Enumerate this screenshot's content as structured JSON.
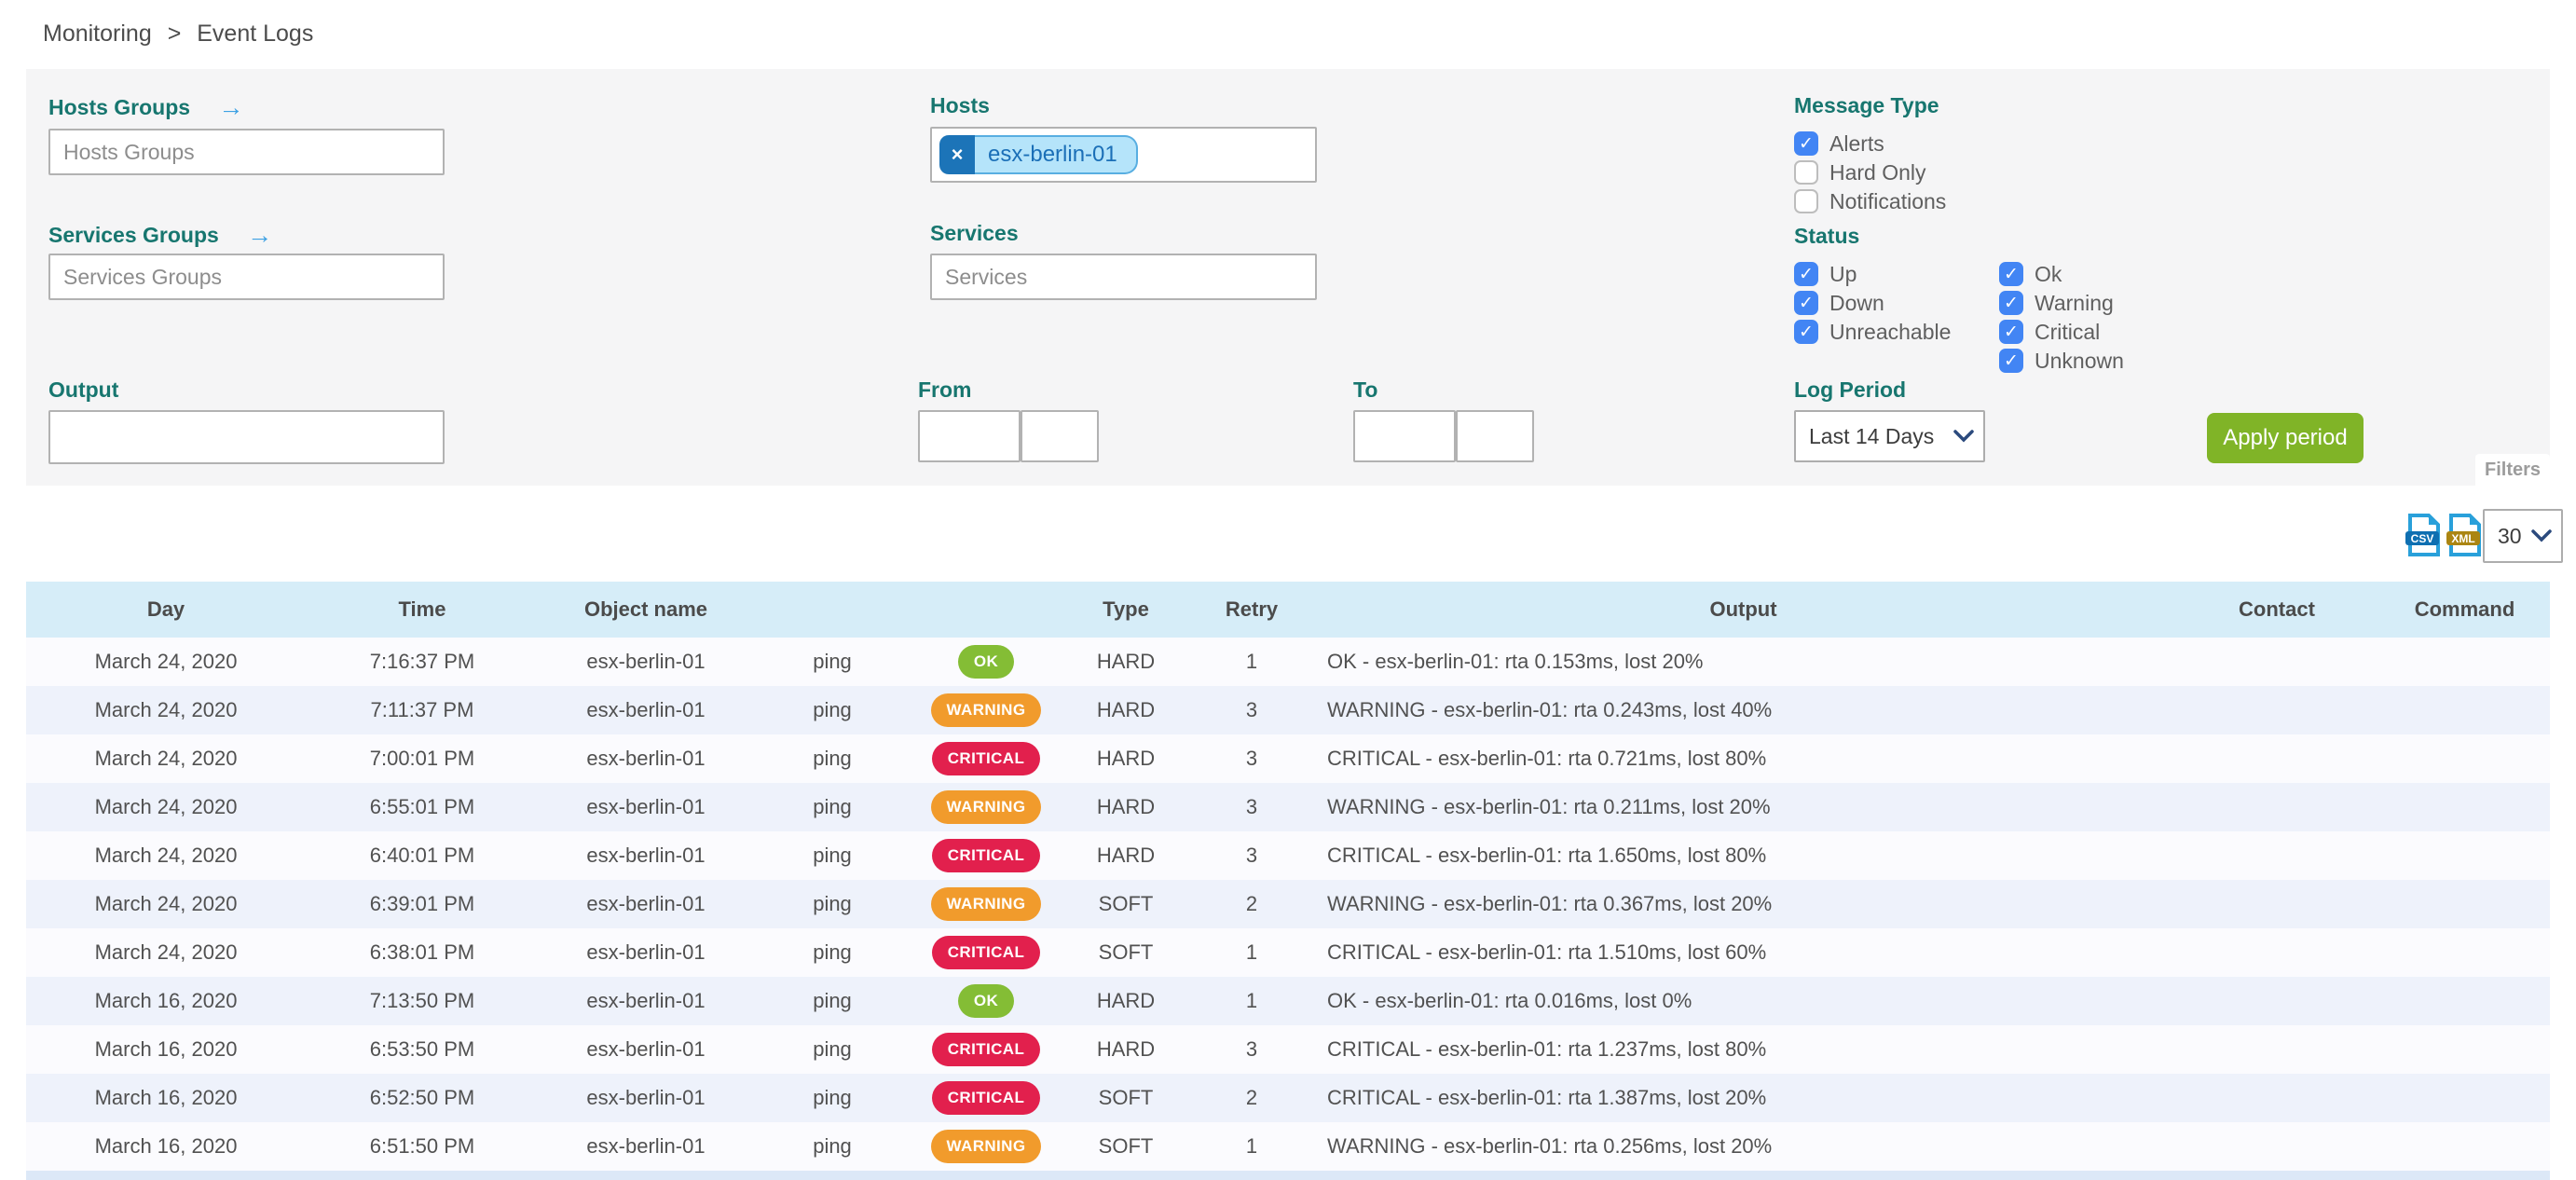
{
  "icons": {
    "arrow_right": "→",
    "remove": "×"
  },
  "breadcrumb": {
    "items": [
      "Monitoring",
      "Event Logs"
    ],
    "separator": ">"
  },
  "filters": {
    "hosts_groups": {
      "label": "Hosts Groups",
      "placeholder": "Hosts Groups"
    },
    "services_groups": {
      "label": "Services Groups",
      "placeholder": "Services Groups"
    },
    "output": {
      "label": "Output",
      "value": ""
    },
    "hosts": {
      "label": "Hosts",
      "selected_tag": "esx-berlin-01"
    },
    "services": {
      "label": "Services",
      "placeholder": "Services"
    },
    "from": {
      "label": "From",
      "date_value": "",
      "time_value": ""
    },
    "to": {
      "label": "To",
      "date_value": "",
      "time_value": ""
    },
    "message_type": {
      "label": "Message Type",
      "options": [
        {
          "label": "Alerts",
          "checked": true
        },
        {
          "label": "Hard Only",
          "checked": false
        },
        {
          "label": "Notifications",
          "checked": false
        }
      ]
    },
    "status": {
      "label": "Status",
      "column1": [
        {
          "label": "Up",
          "checked": true
        },
        {
          "label": "Down",
          "checked": true
        },
        {
          "label": "Unreachable",
          "checked": true
        }
      ],
      "column2": [
        {
          "label": "Ok",
          "checked": true
        },
        {
          "label": "Warning",
          "checked": true
        },
        {
          "label": "Critical",
          "checked": true
        },
        {
          "label": "Unknown",
          "checked": true
        }
      ]
    },
    "log_period": {
      "label": "Log Period",
      "selected": "Last 14 Days"
    },
    "apply_button_label": "Apply period",
    "filters_tab_label": "Filters"
  },
  "toolbar": {
    "export_csv_label": "CSV",
    "export_xml_label": "XML",
    "page_size_selected": "30"
  },
  "table": {
    "columns": [
      "Day",
      "Time",
      "Object name",
      "",
      "",
      "Type",
      "Retry",
      "Output",
      "Contact",
      "Command"
    ],
    "rows": [
      {
        "day": "March 24, 2020",
        "time": "7:16:37 PM",
        "object": "esx-berlin-01",
        "service": "ping",
        "status": "OK",
        "type": "HARD",
        "retry": "1",
        "output": "OK - esx-berlin-01: rta 0.153ms, lost 20%",
        "contact": "",
        "command": ""
      },
      {
        "day": "March 24, 2020",
        "time": "7:11:37 PM",
        "object": "esx-berlin-01",
        "service": "ping",
        "status": "WARNING",
        "type": "HARD",
        "retry": "3",
        "output": "WARNING - esx-berlin-01: rta 0.243ms, lost 40%",
        "contact": "",
        "command": ""
      },
      {
        "day": "March 24, 2020",
        "time": "7:00:01 PM",
        "object": "esx-berlin-01",
        "service": "ping",
        "status": "CRITICAL",
        "type": "HARD",
        "retry": "3",
        "output": "CRITICAL - esx-berlin-01: rta 0.721ms, lost 80%",
        "contact": "",
        "command": ""
      },
      {
        "day": "March 24, 2020",
        "time": "6:55:01 PM",
        "object": "esx-berlin-01",
        "service": "ping",
        "status": "WARNING",
        "type": "HARD",
        "retry": "3",
        "output": "WARNING - esx-berlin-01: rta 0.211ms, lost 20%",
        "contact": "",
        "command": ""
      },
      {
        "day": "March 24, 2020",
        "time": "6:40:01 PM",
        "object": "esx-berlin-01",
        "service": "ping",
        "status": "CRITICAL",
        "type": "HARD",
        "retry": "3",
        "output": "CRITICAL - esx-berlin-01: rta 1.650ms, lost 80%",
        "contact": "",
        "command": ""
      },
      {
        "day": "March 24, 2020",
        "time": "6:39:01 PM",
        "object": "esx-berlin-01",
        "service": "ping",
        "status": "WARNING",
        "type": "SOFT",
        "retry": "2",
        "output": "WARNING - esx-berlin-01: rta 0.367ms, lost 20%",
        "contact": "",
        "command": ""
      },
      {
        "day": "March 24, 2020",
        "time": "6:38:01 PM",
        "object": "esx-berlin-01",
        "service": "ping",
        "status": "CRITICAL",
        "type": "SOFT",
        "retry": "1",
        "output": "CRITICAL - esx-berlin-01: rta 1.510ms, lost 60%",
        "contact": "",
        "command": ""
      },
      {
        "day": "March 16, 2020",
        "time": "7:13:50 PM",
        "object": "esx-berlin-01",
        "service": "ping",
        "status": "OK",
        "type": "HARD",
        "retry": "1",
        "output": "OK - esx-berlin-01: rta 0.016ms, lost 0%",
        "contact": "",
        "command": ""
      },
      {
        "day": "March 16, 2020",
        "time": "6:53:50 PM",
        "object": "esx-berlin-01",
        "service": "ping",
        "status": "CRITICAL",
        "type": "HARD",
        "retry": "3",
        "output": "CRITICAL - esx-berlin-01: rta 1.237ms, lost 80%",
        "contact": "",
        "command": ""
      },
      {
        "day": "March 16, 2020",
        "time": "6:52:50 PM",
        "object": "esx-berlin-01",
        "service": "ping",
        "status": "CRITICAL",
        "type": "SOFT",
        "retry": "2",
        "output": "CRITICAL - esx-berlin-01: rta 1.387ms, lost 20%",
        "contact": "",
        "command": ""
      },
      {
        "day": "March 16, 2020",
        "time": "6:51:50 PM",
        "object": "esx-berlin-01",
        "service": "ping",
        "status": "WARNING",
        "type": "SOFT",
        "retry": "1",
        "output": "WARNING - esx-berlin-01: rta 0.256ms, lost 20%",
        "contact": "",
        "command": ""
      }
    ]
  },
  "colors": {
    "label_teal": "#17766f",
    "arrow_blue": "#3ea1e3",
    "checkbox_blue": "#4285f4",
    "table_header_blue": "#d6edf8",
    "row_odd": "#fbfbfe",
    "row_even": "#eef2fb",
    "badge_ok": "#84bd35",
    "badge_warning": "#f19b2c",
    "badge_critical": "#e2204d",
    "apply_green": "#80b427",
    "tag_bg": "#b5e4fa",
    "tag_text": "#1b6fb7",
    "tag_remove_bg": "#1c74b8",
    "panel_bg": "#f5f5f6"
  }
}
